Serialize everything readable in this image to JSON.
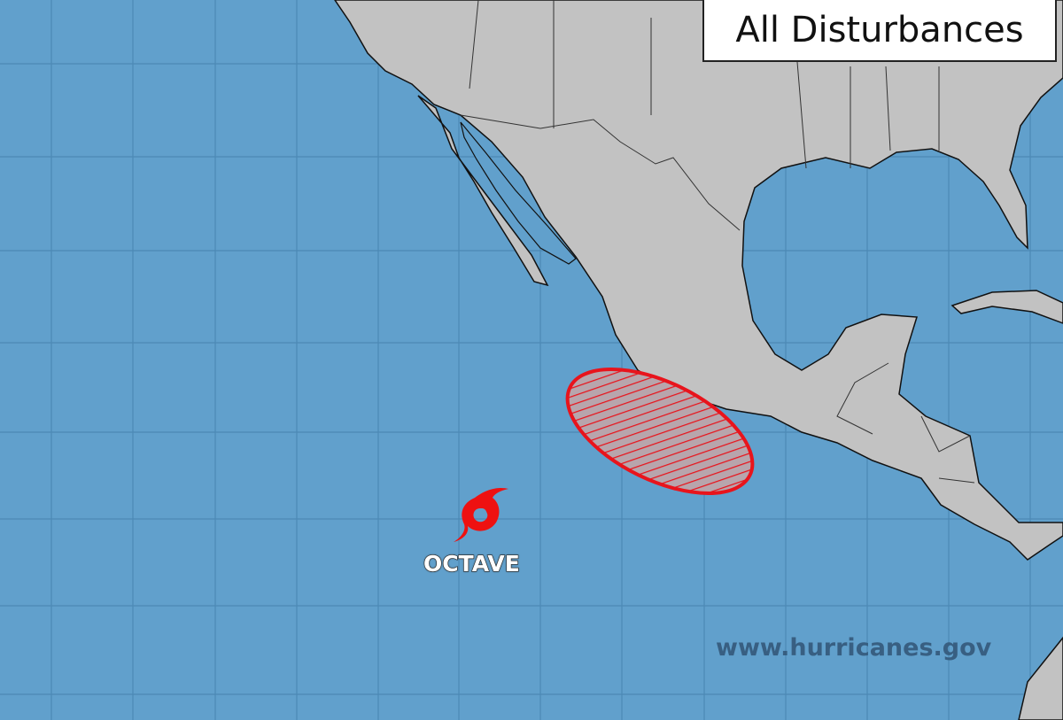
{
  "title": "All Disturbances",
  "watermark": "www.hurricanes.gov",
  "colors": {
    "ocean": "#61a0cc",
    "land": "#c2c2c2",
    "outlook_area": "#e8141c",
    "storm_icon": "#ee1111"
  },
  "storms": [
    {
      "name": "OCTAVE",
      "icon": "tropical-storm-icon"
    }
  ],
  "outlook_areas": [
    {
      "pattern": "hatched",
      "color": "red"
    }
  ]
}
